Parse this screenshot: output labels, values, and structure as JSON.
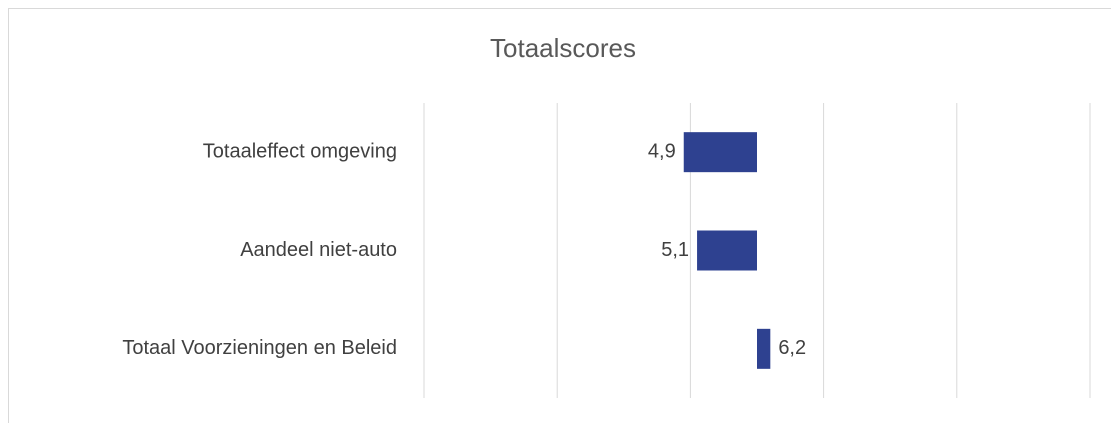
{
  "chart_data": {
    "type": "hbar",
    "title": "Totaalscores",
    "categories": [
      "Totaaleffect omgeving",
      "Aandeel niet-auto",
      "Totaal Voorzieningen en Beleid"
    ],
    "values": [
      4.9,
      5.1,
      6.2
    ],
    "value_labels": [
      "4,9",
      "5,1",
      "6,2"
    ],
    "color": "#2e4190",
    "base": 6,
    "xlim": [
      1,
      11
    ],
    "xticks": [
      1,
      3,
      5,
      7,
      9,
      11
    ],
    "grid": true
  }
}
